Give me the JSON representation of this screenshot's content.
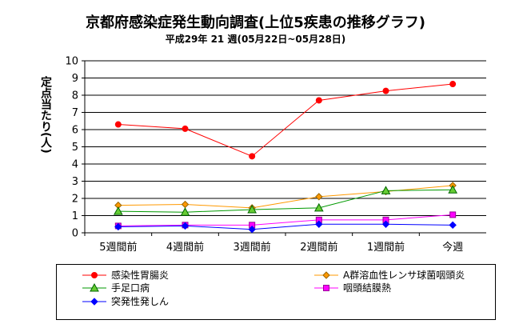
{
  "chart_data": {
    "type": "line",
    "title": "京都府感染症発生動向調査(上位5疾患の推移グラフ)",
    "subtitle": "平成29年 21 週(05月22日~05月28日)",
    "ylabel": "定点当たり(人)",
    "xlabel": "",
    "categories": [
      "5週間前",
      "4週間前",
      "3週間前",
      "2週間前",
      "1週間前",
      "今週"
    ],
    "ylim": [
      0,
      10
    ],
    "yticks": [
      "0",
      "1",
      "2",
      "3",
      "4",
      "5",
      "6",
      "7",
      "8",
      "9",
      "10"
    ],
    "grid": true,
    "legend_position": "bottom",
    "series": [
      {
        "name": "感染性胃腸炎",
        "values": [
          6.3,
          6.05,
          4.45,
          7.7,
          8.25,
          8.65
        ],
        "color": "#ff0000",
        "marker": "circle",
        "marker_color": "#ff0000"
      },
      {
        "name": "A群溶血性レンサ球菌咽頭炎",
        "values": [
          1.6,
          1.65,
          1.45,
          2.1,
          2.4,
          2.75
        ],
        "color": "#ff9900",
        "marker": "diamond",
        "marker_color": "#ff9900"
      },
      {
        "name": "手足口病",
        "values": [
          1.25,
          1.2,
          1.35,
          1.45,
          2.45,
          2.5
        ],
        "color": "#009900",
        "marker": "triangle",
        "marker_color": "#66cc33"
      },
      {
        "name": "咽頭結膜熱",
        "values": [
          0.4,
          0.45,
          0.45,
          0.75,
          0.75,
          1.05
        ],
        "color": "#ff00ff",
        "marker": "square",
        "marker_color": "#ff00ff"
      },
      {
        "name": "突発性発しん",
        "values": [
          0.35,
          0.4,
          0.2,
          0.5,
          0.5,
          0.45
        ],
        "color": "#0000ff",
        "marker": "diamond",
        "marker_color": "#0000ff"
      }
    ]
  }
}
